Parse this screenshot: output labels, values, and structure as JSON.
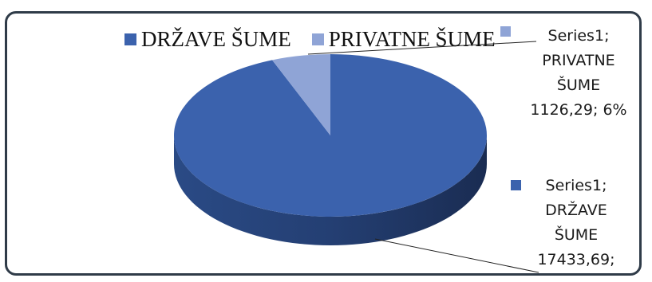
{
  "chart_data": {
    "type": "pie",
    "style": "3d",
    "categories": [
      "DRŽAVE ŠUME",
      "PRIVATNE ŠUME"
    ],
    "series": [
      {
        "name": "Series1",
        "values": [
          17433.69,
          1126.29
        ]
      }
    ],
    "colors": [
      "#3b62ad",
      "#8fa4d6"
    ],
    "legend": {
      "position": "top",
      "items": [
        "DRŽAVE ŠUME",
        "PRIVATNE ŠUME"
      ]
    },
    "data_labels": [
      {
        "series": "Series1",
        "category": "PRIVATNE ŠUME",
        "value": "1126,29",
        "percent": "6%"
      },
      {
        "series": "Series1",
        "category": "DRŽAVE ŠUME",
        "value": "17433,69"
      }
    ]
  }
}
